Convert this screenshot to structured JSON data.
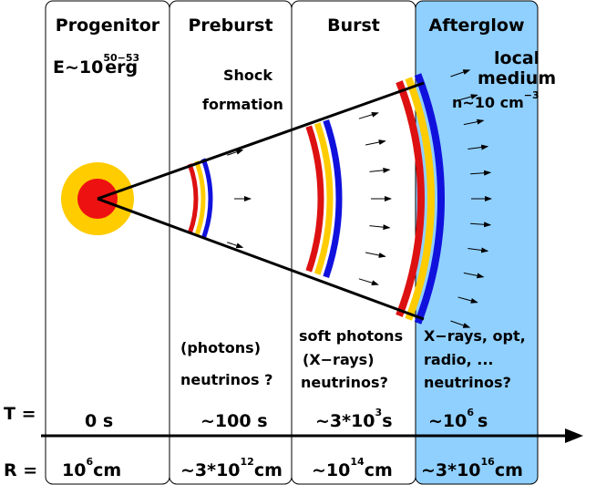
{
  "panels": [
    {
      "title": "Progenitor",
      "energy": {
        "base": "E~10",
        "sup": "50−53",
        "unit": "erg"
      },
      "time": "0 s",
      "radius": {
        "base": "10",
        "sup": "6",
        "unit": "cm"
      }
    },
    {
      "title": "Preburst",
      "lines": [
        "Shock",
        "formation"
      ],
      "emission": [
        "(photons)",
        "neutrinos ?"
      ],
      "time": "~100 s",
      "radius": {
        "base": "~3*10",
        "sup": "12",
        "unit": "cm"
      }
    },
    {
      "title": "Burst",
      "emission": [
        "soft photons",
        "(X−rays)",
        "neutrinos?"
      ],
      "time": {
        "base": "~3*10",
        "sup": "3",
        "unit": "s"
      },
      "radius": {
        "base": "~10",
        "sup": "14",
        "unit": "cm"
      }
    },
    {
      "title": "Afterglow",
      "lines": [
        "local",
        "medium"
      ],
      "density": {
        "base": "n~10 cm",
        "sup": "−3"
      },
      "emission": [
        "X−rays, opt,",
        "radio, ...",
        "neutrinos?"
      ],
      "time": {
        "base": "~10",
        "sup": "6",
        "unit": "s"
      },
      "radius": {
        "base": "~3*10",
        "sup": "16",
        "unit": "cm"
      }
    }
  ],
  "row_labels": {
    "time": "T =",
    "radius": "R ="
  }
}
